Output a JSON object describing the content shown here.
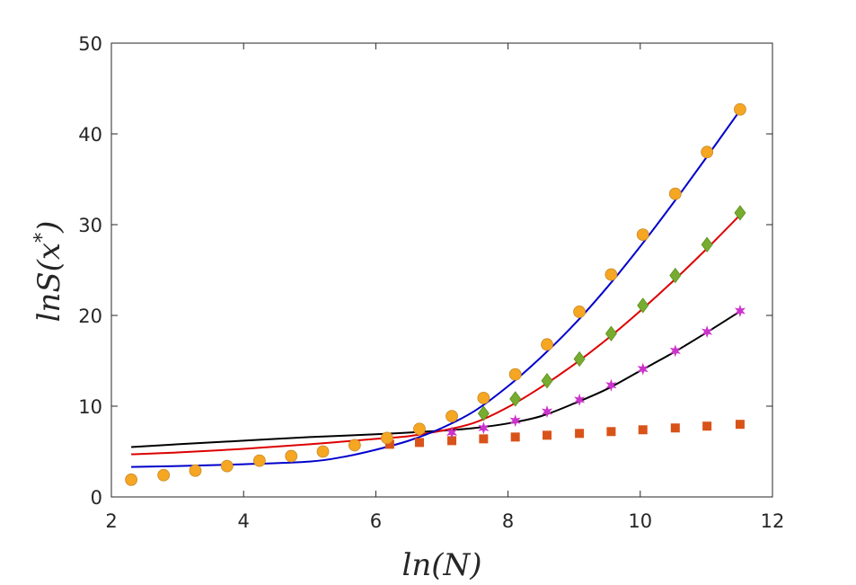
{
  "chart_data": {
    "type": "scatter",
    "title": "",
    "xlabel": "ln(N)",
    "ylabel": "lnS(x*)",
    "ylabel_parts": {
      "prefix": "lnS(x",
      "superscript": "*",
      "suffix": ")"
    },
    "xlim": [
      2,
      12
    ],
    "ylim": [
      0,
      50
    ],
    "xticks": [
      2,
      4,
      6,
      8,
      10,
      12
    ],
    "yticks": [
      0,
      10,
      20,
      30,
      40,
      50
    ],
    "grid": false,
    "legend": "none",
    "series": [
      {
        "name": "squares",
        "marker": "square",
        "color": "#d95319",
        "x": [
          6.21,
          6.66,
          7.15,
          7.63,
          8.11,
          8.59,
          9.08,
          9.56,
          10.04,
          10.53,
          11.01,
          11.51
        ],
        "y": [
          5.8,
          6.0,
          6.2,
          6.4,
          6.6,
          6.8,
          7.0,
          7.2,
          7.4,
          7.6,
          7.8,
          8.0
        ]
      },
      {
        "name": "stars",
        "marker": "star",
        "color": "#cc33cc",
        "x": [
          7.15,
          7.63,
          8.11,
          8.59,
          9.08,
          9.56,
          10.04,
          10.53,
          11.01,
          11.51
        ],
        "y": [
          7.1,
          7.6,
          8.4,
          9.4,
          10.7,
          12.3,
          14.1,
          16.1,
          18.2,
          20.5
        ]
      },
      {
        "name": "diamonds",
        "marker": "diamond",
        "color": "#77ac30",
        "x": [
          7.63,
          8.11,
          8.59,
          9.08,
          9.56,
          10.04,
          10.53,
          11.01,
          11.51
        ],
        "y": [
          9.2,
          10.8,
          12.8,
          15.2,
          18.0,
          21.1,
          24.4,
          27.8,
          31.3
        ]
      },
      {
        "name": "circles",
        "marker": "circle",
        "color": "#f5a623",
        "x": [
          2.3,
          2.79,
          3.27,
          3.75,
          4.24,
          4.72,
          5.2,
          5.68,
          6.17,
          6.66,
          7.15,
          7.63,
          8.11,
          8.59,
          9.08,
          9.56,
          10.04,
          10.53,
          11.01,
          11.51
        ],
        "y": [
          1.9,
          2.4,
          2.9,
          3.4,
          4.0,
          4.5,
          5.0,
          5.7,
          6.5,
          7.5,
          8.9,
          10.9,
          13.5,
          16.8,
          20.4,
          24.5,
          28.9,
          33.4,
          38.0,
          42.7
        ]
      }
    ],
    "fits": [
      {
        "name": "black-fit",
        "color": "#000000",
        "x": [
          2.3,
          3.0,
          4.0,
          5.0,
          6.0,
          7.0,
          7.5,
          8.0,
          8.5,
          9.0,
          9.5,
          10.0,
          10.5,
          11.0,
          11.5
        ],
        "y": [
          5.5,
          5.8,
          6.2,
          6.6,
          6.9,
          7.3,
          7.6,
          8.1,
          8.9,
          10.3,
          11.9,
          13.9,
          15.9,
          18.1,
          20.4
        ]
      },
      {
        "name": "red-fit",
        "color": "#dd0000",
        "x": [
          2.3,
          3.0,
          4.0,
          5.0,
          6.0,
          6.5,
          7.0,
          7.5,
          8.0,
          8.5,
          9.0,
          9.5,
          10.0,
          10.5,
          11.0,
          11.5
        ],
        "y": [
          4.7,
          4.9,
          5.3,
          5.8,
          6.4,
          6.7,
          7.3,
          8.2,
          9.9,
          12.1,
          14.6,
          17.4,
          20.5,
          23.8,
          27.3,
          31.0
        ]
      },
      {
        "name": "blue-fit",
        "color": "#0000cc",
        "x": [
          2.3,
          3.0,
          4.0,
          5.0,
          5.5,
          6.0,
          6.5,
          7.0,
          7.5,
          8.0,
          8.5,
          9.0,
          9.5,
          10.0,
          10.5,
          11.0,
          11.5
        ],
        "y": [
          3.3,
          3.4,
          3.6,
          3.9,
          4.4,
          5.2,
          6.2,
          7.6,
          9.5,
          12.2,
          15.4,
          19.0,
          23.1,
          27.6,
          32.4,
          37.4,
          42.5
        ]
      }
    ]
  }
}
